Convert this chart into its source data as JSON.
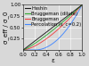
{
  "xlabel": "ε",
  "ylabel": "σ_eff / σ_0",
  "xlim": [
    0.0,
    1.0
  ],
  "ylim": [
    0.0,
    1.0
  ],
  "legend_labels": [
    "Hashin",
    "Bruggeman (dilute)",
    "Bruggeman",
    "Percolation (ε_c=0.2)"
  ],
  "legend_colors": [
    "#1a1a1a",
    "#33aa33",
    "#ee4444",
    "#4488ff"
  ],
  "background_color": "#d8d8d8",
  "grid_color": "#ffffff",
  "tick_fontsize": 4.0,
  "legend_fontsize": 3.8,
  "label_fontsize": 5.0,
  "xticks": [
    0.0,
    0.2,
    0.4,
    0.6,
    0.8,
    1.0
  ],
  "yticks": [
    0.25,
    0.5,
    0.75,
    1.0
  ],
  "eps_c": 0.2,
  "percolation_t": 2.0
}
